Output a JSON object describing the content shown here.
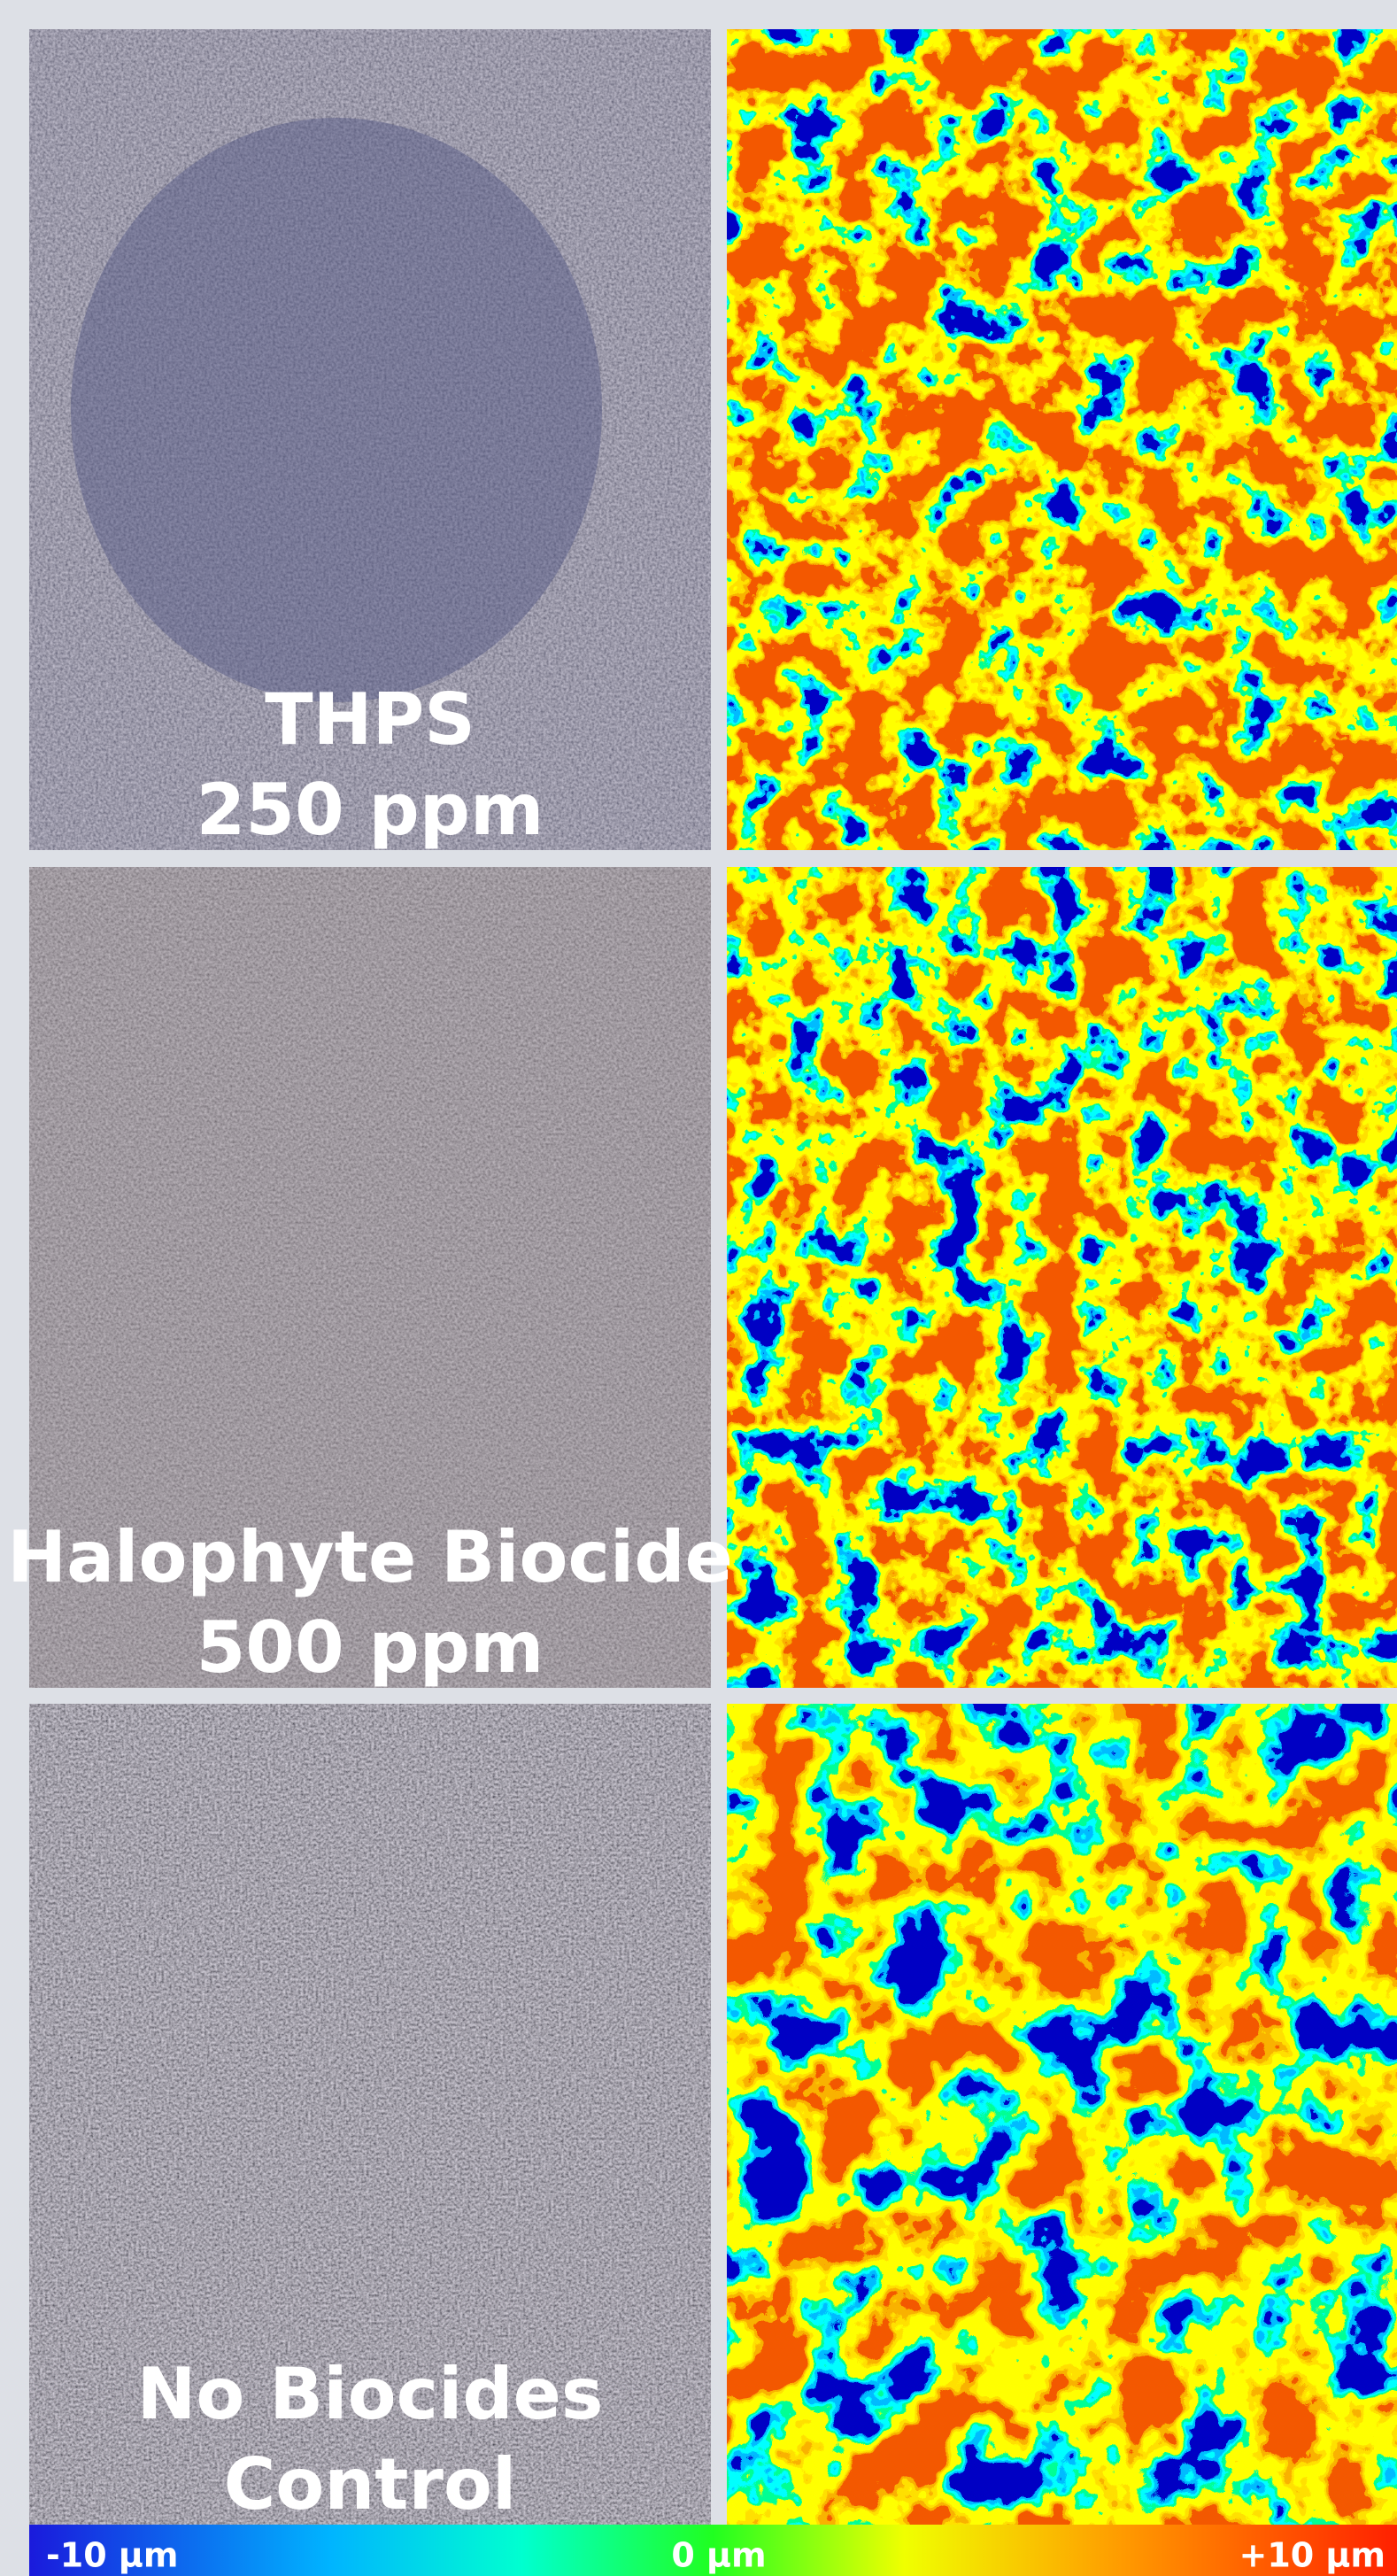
{
  "panels": [
    {
      "label_lines": [
        "THPS",
        "250 ppm"
      ]
    },
    {
      "label_lines": [
        "Halophyte Biocide",
        "500 ppm"
      ]
    },
    {
      "label_lines": [
        "No Biocides",
        "Control"
      ]
    }
  ],
  "colorbar": {
    "labels": [
      "-10 µm",
      "0 µm",
      "+10 µm"
    ]
  }
}
